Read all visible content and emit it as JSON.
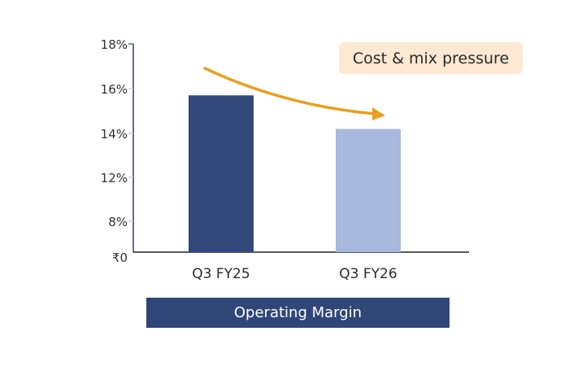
{
  "chart_data": {
    "type": "bar",
    "categories": [
      "Q3 FY25",
      "Q3 FY26"
    ],
    "values": [
      15.7,
      14.2
    ],
    "bar_colors": [
      "#33487a",
      "#a8b9dd"
    ],
    "y_ticks": [
      "₹0",
      "8%",
      "12%",
      "14%",
      "16%",
      "18%"
    ],
    "y_tick_values": [
      0,
      8,
      12,
      14,
      16,
      18
    ],
    "ylim": [
      0,
      18
    ],
    "grid": false,
    "annotation": "Cost & mix pressure",
    "annotation_arrow_color": "#e8a020",
    "footer_label": "Operating Margin"
  }
}
